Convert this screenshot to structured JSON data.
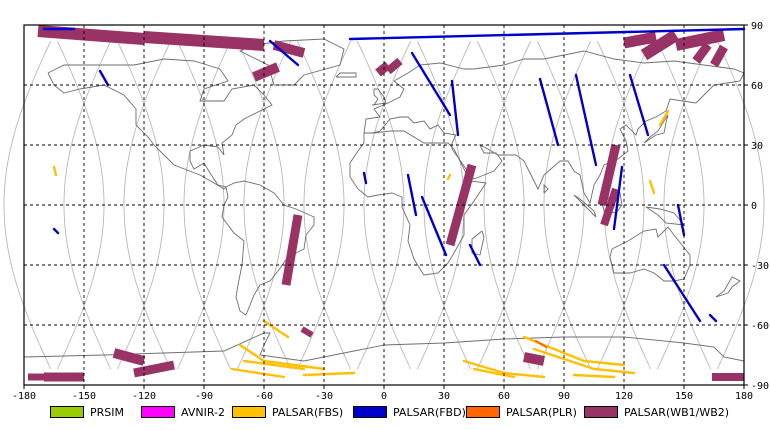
{
  "map": {
    "x_ticks": [
      "-180",
      "-150",
      "-120",
      "-90",
      "-60",
      "-30",
      "0",
      "30",
      "60",
      "90",
      "120",
      "150",
      "180"
    ],
    "y_ticks": [
      "90",
      "60",
      "30",
      "0",
      "-30",
      "-60",
      "-90"
    ],
    "colors": {
      "frame": "#000000",
      "grid": "#000000",
      "orbit": "#b8b8b8",
      "coast": "#6e6e6e",
      "prsim": "#99cc00",
      "avnir2": "#ff00ff",
      "fbs": "#ffc000",
      "fbd": "#0000cc",
      "plr": "#ff6600",
      "wb": "#993366"
    }
  },
  "legend": [
    {
      "label": "PRSIM",
      "color": "#99cc00"
    },
    {
      "label": "AVNIR-2",
      "color": "#ff00ff"
    },
    {
      "label": "PALSAR(FBS)",
      "color": "#ffc000"
    },
    {
      "label": "PALSAR(FBD)",
      "color": "#0000cc"
    },
    {
      "label": "PALSAR(PLR)",
      "color": "#ff6600"
    },
    {
      "label": "PALSAR(WB1/WB2)",
      "color": "#993366"
    }
  ]
}
